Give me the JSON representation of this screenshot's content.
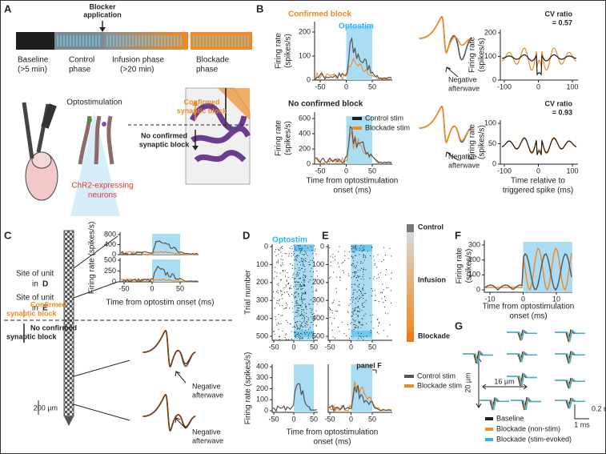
{
  "A": {
    "label": "A",
    "blocker": [
      "Blocker",
      "application"
    ],
    "phases": [
      [
        "Baseline",
        "(>5 min)"
      ],
      [
        "Control",
        "phase"
      ],
      [
        "Infusion phase",
        "(>20 min)"
      ],
      [
        "Blockade",
        "phase"
      ]
    ],
    "optostimulation": "Optostimulation",
    "confirmed": [
      "Confirmed",
      "synaptic block"
    ],
    "no_confirmed": [
      "No confirmed",
      "synaptic block"
    ],
    "neurons": [
      "ChR2-expressing",
      "neurons"
    ]
  },
  "B": {
    "label": "B",
    "rows": [
      {
        "title": "Confirmed block",
        "optostim": "Optostim",
        "afterwave": [
          "Negative",
          "afterwave"
        ],
        "cv_ratio": [
          "CV ratio",
          "= 0.57"
        ],
        "psth_yticks": [
          0,
          100,
          200
        ],
        "cv_yticks": [
          0,
          100,
          200
        ]
      },
      {
        "title": "No confirmed block",
        "legend": [
          "Control stim",
          "Blockade stim"
        ],
        "afterwave": [
          "Negative",
          "afterwave"
        ],
        "cv_ratio": [
          "CV ratio",
          "= 0.93"
        ],
        "psth_yticks": [
          0,
          200,
          400,
          600
        ],
        "cv_yticks": [
          0,
          50,
          100
        ]
      }
    ],
    "ylabel": [
      "Firing rate",
      "(spikes/s)"
    ],
    "psth_xticks": [
      -50,
      0,
      50
    ],
    "cv_xticks": [
      -100,
      0,
      100
    ],
    "xlabel": [
      "Time from optostimulation",
      "onset (ms)"
    ],
    "cv_xlabel": [
      "Time relative to",
      "triggered spike (ms)"
    ]
  },
  "C": {
    "label": "C",
    "sites": [
      [
        "Site of unit",
        "in",
        "D"
      ],
      [
        "Site of unit",
        "in",
        "E"
      ]
    ],
    "confirmed": [
      "Confirmed",
      "synaptic block"
    ],
    "no_confirmed": [
      "No confirmed",
      "synaptic block"
    ],
    "scale": "200 µm",
    "ylabel": "Firing rate (spikes/s)",
    "plot_yticks": [
      [
        0,
        400,
        800
      ],
      [
        0,
        250,
        500
      ]
    ],
    "xticks": [
      -50,
      0,
      50
    ],
    "xlabel": "Time from optostim onset (ms)",
    "afterwave": [
      [
        "Negative",
        "afterwave"
      ],
      [
        "Negative",
        "afterwave"
      ]
    ]
  },
  "D": {
    "label": "D",
    "optostim": "Optostim",
    "trial_label": "Trial number",
    "trial_ticks": [
      0,
      100,
      200,
      300,
      400,
      500
    ],
    "xticks": [
      -50,
      0,
      50
    ],
    "rate_label": "Firing rate (spikes/s)",
    "rate_ticks": [
      0,
      100,
      200,
      300,
      400
    ]
  },
  "E": {
    "label": "E",
    "trial_ticks": [
      0,
      100,
      200,
      300,
      400,
      500
    ],
    "xticks": [
      -50,
      0,
      50
    ],
    "bracket": "panel F",
    "legend": [
      "Control stim",
      "Blockade stim"
    ],
    "colorbar": [
      "Control",
      "Infusion",
      "Blockade"
    ]
  },
  "DE_xlabel": [
    "Time from optostimulation",
    "onset (ms)"
  ],
  "F": {
    "label": "F",
    "yticks": [
      0,
      100,
      200,
      300
    ],
    "xticks": [
      -10,
      0,
      10
    ],
    "ylabel": [
      "Firing rate",
      "(spikes/s)"
    ],
    "xlabel": [
      "Time from optostimulation",
      "onset (ms)"
    ]
  },
  "G": {
    "label": "G",
    "distance_v": "20 µm",
    "distance_h": "16 µm",
    "amp_scale": "0.2 mV",
    "time_scale": "1 ms",
    "legend": [
      "Baseline",
      "Blockade (non-stim)",
      "Blockade (stim-evoked)"
    ]
  }
}
